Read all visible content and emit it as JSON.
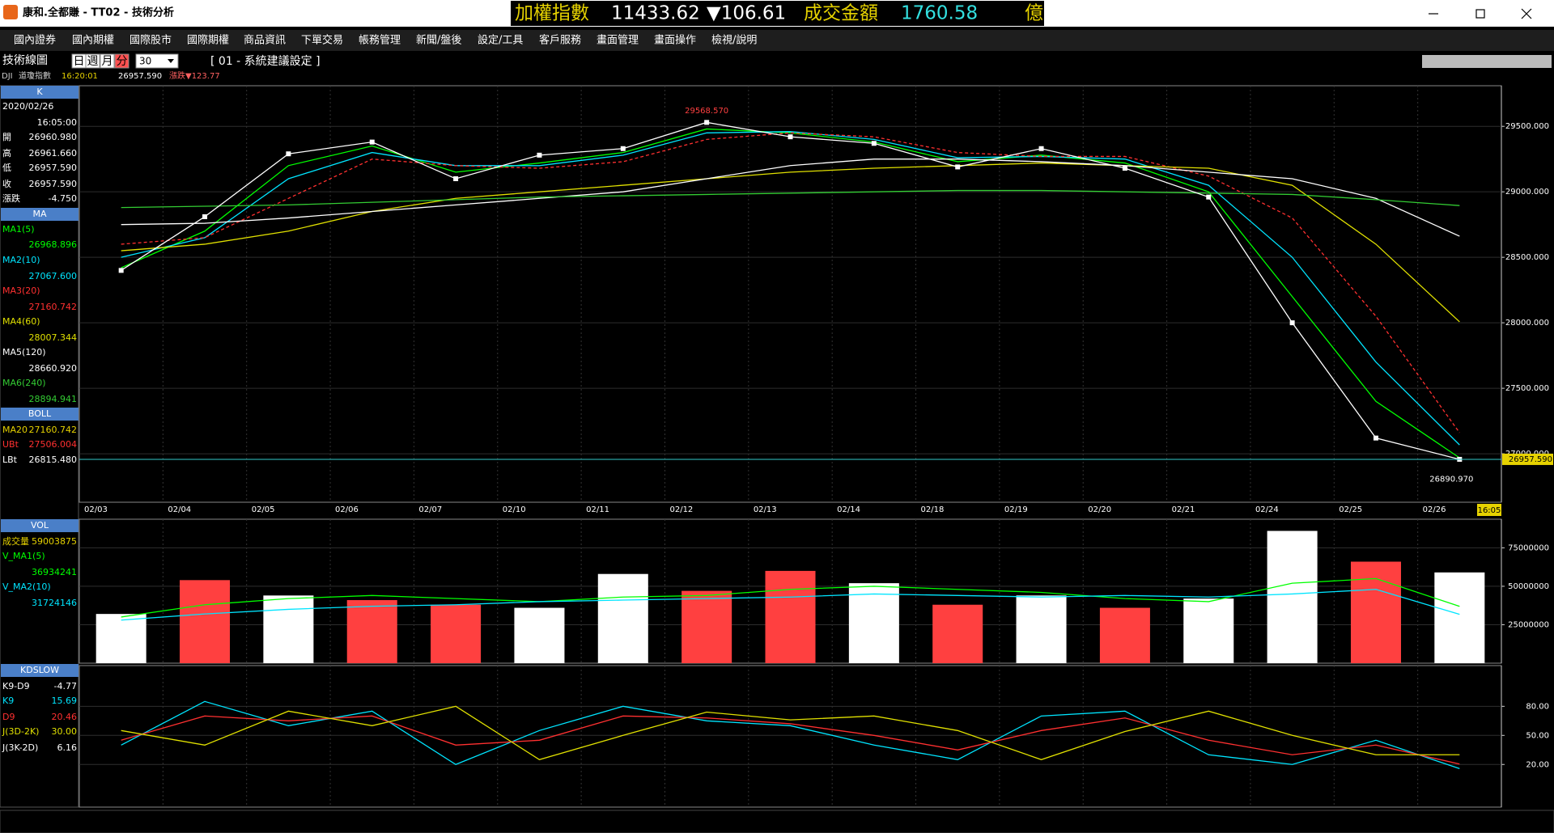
{
  "window": {
    "title": "康和.全都賺 - TT02 - 技術分析",
    "ticker": {
      "label": "加權指數",
      "value": "11433.62",
      "change": "▼106.61",
      "amount_label": "成交金額",
      "amount": "1760.58",
      "unit": "億"
    }
  },
  "menu": [
    "國內證券",
    "國內期權",
    "國際股市",
    "國際期權",
    "商品資訊",
    "下單交易",
    "帳務管理",
    "新聞/盤後",
    "設定/工具",
    "客戶服務",
    "畫面管理",
    "畫面操作",
    "檢視/說明"
  ],
  "toolbar": {
    "label": "技術線圖",
    "periods": [
      "日",
      "週",
      "月",
      "分"
    ],
    "interval": "30",
    "setting": "[ 01 - 系統建議設定 ]"
  },
  "quote": {
    "symbol": "DJI",
    "name": "道瓊指數",
    "time": "16:20:01",
    "price": "26957.590",
    "change": "漲跌▼123.77"
  },
  "side_panel": {
    "k": {
      "header": "K",
      "date": "2020/02/26",
      "time": "16:05:00",
      "rows": [
        [
          "開",
          "26960.980"
        ],
        [
          "高",
          "26961.660"
        ],
        [
          "低",
          "26957.590"
        ],
        [
          "收",
          "26957.590"
        ],
        [
          "漲跌",
          "-4.750"
        ]
      ]
    },
    "ma": {
      "header": "MA",
      "readings": [
        "26968.896",
        "27067.600",
        "27160.742",
        "28007.344",
        "28660.920",
        "28894.941"
      ]
    },
    "boll": {
      "header": "BOLL",
      "rows": [
        [
          "MA20",
          "27160.742"
        ],
        [
          "UBt",
          "27506.004"
        ],
        [
          "LBt",
          "26815.480"
        ]
      ]
    },
    "vol": {
      "header": "VOL",
      "readings": [
        "59003875",
        "36934241",
        "31724146"
      ]
    },
    "kd": {
      "header": "KDSLOW",
      "rows_top": [
        [
          "K9-D9",
          "-4.77"
        ]
      ],
      "readings": [
        "15.69",
        "20.46",
        "30.00"
      ],
      "rows_bottom": [
        [
          "J(3K-2D)",
          "6.16"
        ]
      ]
    }
  },
  "chart_data": [
    {
      "type": "line",
      "categories": [
        "02/03",
        "02/04",
        "02/05",
        "02/06",
        "02/07",
        "02/10",
        "02/11",
        "02/12",
        "02/13",
        "02/14",
        "02/18",
        "02/19",
        "02/20",
        "02/21",
        "02/24",
        "02/25",
        "02/26"
      ],
      "values": [
        28400,
        28810,
        29290,
        29380,
        29100,
        29280,
        29330,
        29530,
        29420,
        29370,
        29190,
        29330,
        29180,
        28960,
        28000,
        27120,
        26957.59
      ],
      "color": "#ffffff",
      "series": [
        {
          "name": "MA1(5)",
          "color": "#00ff00",
          "values": [
            28420,
            28700,
            29200,
            29350,
            29150,
            29220,
            29300,
            29480,
            29450,
            29380,
            29230,
            29280,
            29220,
            29000,
            28200,
            27400,
            26968.896
          ]
        },
        {
          "name": "MA2(10)",
          "color": "#00e5ff",
          "values": [
            28500,
            28650,
            29100,
            29300,
            29200,
            29200,
            29280,
            29450,
            29460,
            29400,
            29260,
            29270,
            29250,
            29050,
            28500,
            27700,
            27067.6
          ]
        },
        {
          "name": "MA3(20)",
          "color": "#ff3030",
          "values": [
            28600,
            28650,
            28950,
            29250,
            29200,
            29180,
            29230,
            29400,
            29450,
            29420,
            29300,
            29270,
            29270,
            29120,
            28800,
            28050,
            27160.742
          ]
        },
        {
          "name": "MA4(60)",
          "color": "#e0e000",
          "values": [
            28550,
            28600,
            28700,
            28850,
            28950,
            29000,
            29050,
            29100,
            29150,
            29180,
            29200,
            29220,
            29200,
            29180,
            29050,
            28600,
            28007.344
          ]
        },
        {
          "name": "MA5(120)",
          "color": "#ffffff",
          "values": [
            28750,
            28760,
            28800,
            28850,
            28900,
            28950,
            29000,
            29100,
            29200,
            29250,
            29250,
            29230,
            29200,
            29150,
            29100,
            28950,
            28660.92
          ]
        },
        {
          "name": "MA6(240)",
          "color": "#33cc33",
          "values": [
            28880,
            28890,
            28900,
            28920,
            28940,
            28960,
            28970,
            28980,
            28990,
            29000,
            29010,
            29010,
            29000,
            28990,
            28980,
            28940,
            28894.941
          ]
        }
      ],
      "ylim": [
        26630,
        29810
      ],
      "yticks": [
        {
          "value": 27000,
          "label": "27000.000"
        },
        {
          "value": 27500,
          "label": "27500.000"
        },
        {
          "value": 28000,
          "label": "28000.000"
        },
        {
          "value": 28500,
          "label": "28500.000"
        },
        {
          "value": 29000,
          "label": "29000.000"
        },
        {
          "value": 29500,
          "label": "29500.000"
        }
      ],
      "high": {
        "value": 29568.57,
        "label": "29568.570"
      },
      "low": {
        "value": 26890.97,
        "label": "26890.970"
      },
      "current": {
        "value": 26957.59,
        "label": "26957.590"
      },
      "last_time": "16:05",
      "grid": true
    },
    {
      "type": "bar",
      "series": [
        {
          "name": "成交量",
          "values": [
            32000000,
            54000000,
            44000000,
            41000000,
            38000000,
            36000000,
            58000000,
            47000000,
            60000000,
            52000000,
            38000000,
            44000000,
            36000000,
            42000000,
            86000000,
            66000000,
            59003875
          ],
          "colors": [
            "#ffffff",
            "#ff4040",
            "#ffffff",
            "#ff4040",
            "#ff4040",
            "#ffffff",
            "#ffffff",
            "#ff4040",
            "#ff4040",
            "#ffffff",
            "#ff4040",
            "#ffffff",
            "#ff4040",
            "#ffffff",
            "#ffffff",
            "#ff4040",
            "#ffffff"
          ]
        },
        {
          "name": "V_MA1(5)",
          "type": "line",
          "color": "#00ff00",
          "values": [
            30000000,
            38000000,
            42000000,
            44000000,
            42000000,
            40000000,
            43000000,
            44000000,
            48000000,
            50000000,
            48000000,
            46000000,
            42000000,
            40000000,
            52000000,
            55000000,
            36934241
          ]
        },
        {
          "name": "V_MA2(10)",
          "type": "line",
          "color": "#00e5ff",
          "values": [
            28000000,
            32000000,
            35000000,
            37000000,
            38000000,
            40000000,
            41000000,
            42000000,
            43000000,
            45000000,
            44000000,
            43000000,
            44000000,
            43000000,
            45000000,
            48000000,
            31724146
          ]
        }
      ],
      "ylim": [
        0,
        93600000
      ],
      "yticks": [
        25000000,
        50000000,
        75000000
      ],
      "grid": true
    },
    {
      "type": "line",
      "series": [
        {
          "name": "K9",
          "color": "#00e5ff",
          "values": [
            40,
            85,
            60,
            75,
            20,
            55,
            80,
            65,
            60,
            40,
            25,
            70,
            75,
            30,
            20,
            45,
            15.69
          ]
        },
        {
          "name": "D9",
          "color": "#ff3030",
          "values": [
            45,
            70,
            65,
            70,
            40,
            45,
            70,
            68,
            62,
            50,
            35,
            55,
            68,
            45,
            30,
            40,
            20.46
          ]
        },
        {
          "name": "J(3D-2K)",
          "color": "#e0e000",
          "values": [
            55,
            40,
            75,
            60,
            80,
            25,
            50,
            74,
            66,
            70,
            55,
            25,
            54,
            75,
            50,
            30,
            30
          ]
        }
      ],
      "ylim": [
        -24,
        122
      ],
      "yticks": [
        {
          "value": 20,
          "label": "20.00"
        },
        {
          "value": 50,
          "label": "50.00"
        },
        {
          "value": 80,
          "label": "80.00"
        }
      ],
      "grid": true
    }
  ]
}
